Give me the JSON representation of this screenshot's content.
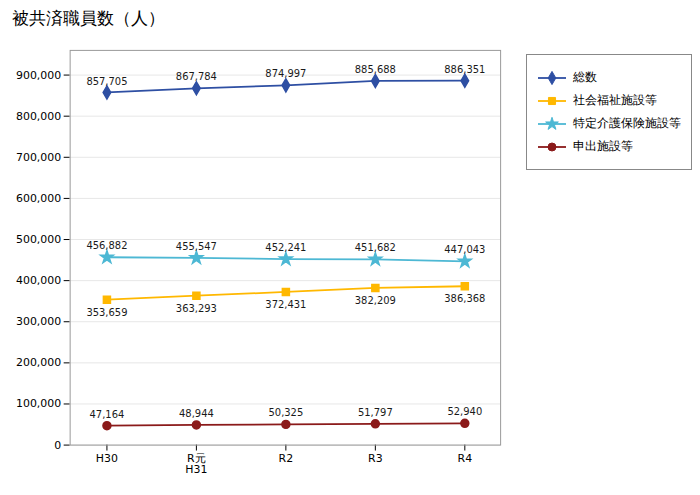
{
  "chart_data": {
    "type": "line",
    "title": "被共済職員数（人）",
    "categories": [
      "H30",
      "R元\nH31",
      "R2",
      "R3",
      "R4"
    ],
    "series": [
      {
        "name": "総数",
        "color": "#2E4FA3",
        "marker": "diamond",
        "values": [
          857705,
          867784,
          874997,
          885688,
          886351
        ],
        "value_labels": [
          "857,705",
          "867,784",
          "874,997",
          "885,688",
          "886,351"
        ]
      },
      {
        "name": "社会福祉施設等",
        "color": "#FFB800",
        "marker": "square",
        "values": [
          353659,
          363293,
          372431,
          382209,
          386368
        ],
        "value_labels": [
          "353,659",
          "363,293",
          "372,431",
          "382,209",
          "386,368"
        ]
      },
      {
        "name": "特定介護保険施設等",
        "color": "#4DB8D4",
        "marker": "star",
        "values": [
          456882,
          455547,
          452241,
          451682,
          447043
        ],
        "value_labels": [
          "456,882",
          "455,547",
          "452,241",
          "451,682",
          "447,043"
        ]
      },
      {
        "name": "申出施設等",
        "color": "#8B1A1A",
        "marker": "circle",
        "values": [
          47164,
          48944,
          50325,
          51797,
          52940
        ],
        "value_labels": [
          "47,164",
          "48,944",
          "50,325",
          "51,797",
          "52,940"
        ]
      }
    ],
    "ylim": [
      0,
      960000
    ],
    "yticks": [
      0,
      {
        "value": 100000,
        "label": "100,000"
      },
      {
        "value": 200000,
        "label": "200,000"
      },
      {
        "value": 300000,
        "label": "300,000"
      },
      {
        "value": 400000,
        "label": "400,000"
      },
      {
        "value": 500000,
        "label": "500,000"
      },
      {
        "value": 600000,
        "label": "600,000"
      },
      {
        "value": 700000,
        "label": "700,000"
      },
      {
        "value": 800000,
        "label": "800,000"
      },
      {
        "value": 900000,
        "label": "900,000"
      }
    ],
    "grid": true,
    "legend": "right",
    "data_labels": true
  }
}
